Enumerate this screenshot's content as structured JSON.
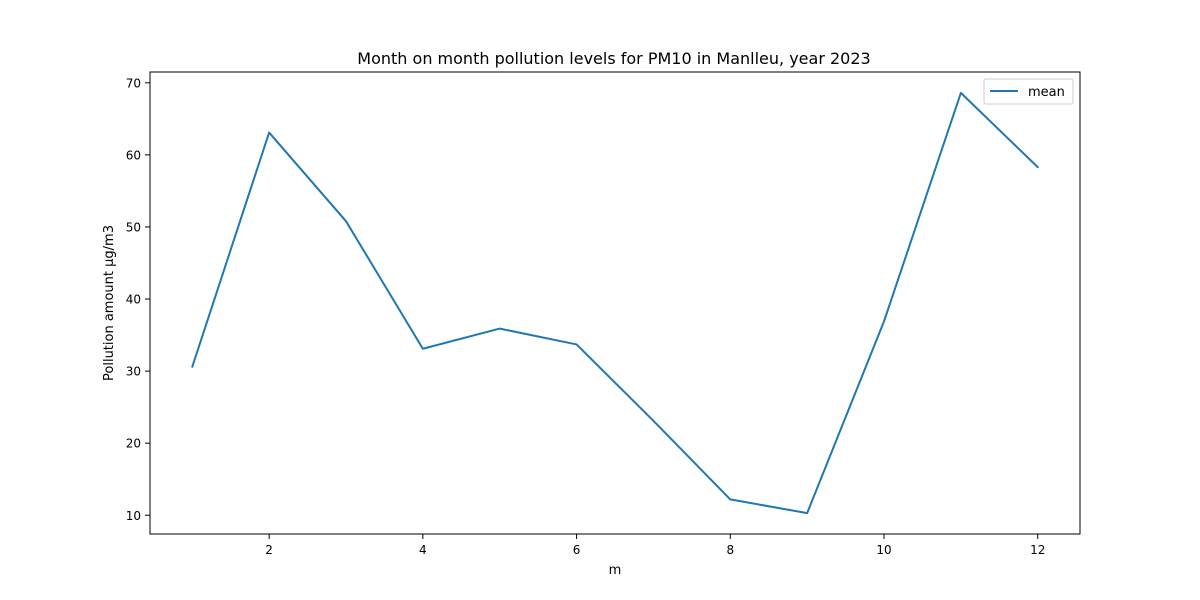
{
  "chart_data": {
    "type": "line",
    "title": "Month on month pollution levels for PM10 in Manlleu, year 2023",
    "xlabel": "m",
    "ylabel": "Pollution amount µg/m3",
    "x": [
      1,
      2,
      3,
      4,
      5,
      6,
      7,
      8,
      9,
      10,
      11,
      12
    ],
    "series": [
      {
        "name": "mean",
        "color": "#1f77b4",
        "values": [
          30.6,
          63.1,
          50.8,
          33.1,
          35.9,
          33.7,
          23.1,
          12.2,
          10.3,
          36.9,
          68.6,
          58.3
        ]
      }
    ],
    "xlim": [
      0.45,
      12.55
    ],
    "ylim": [
      7.4,
      71.5
    ],
    "xticks": [
      2,
      4,
      6,
      8,
      10,
      12
    ],
    "yticks": [
      10,
      20,
      30,
      40,
      50,
      60,
      70
    ],
    "legend_position": "top-right",
    "grid": false
  }
}
